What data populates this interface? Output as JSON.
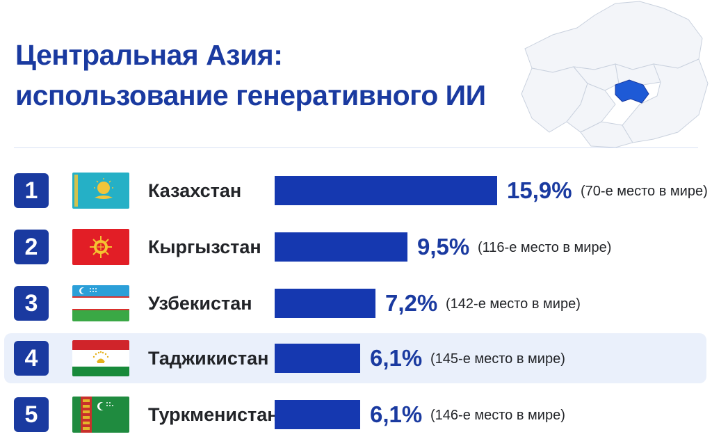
{
  "header": {
    "title_line1": "Центральная Азия:",
    "title_line2": "использование генеративного ИИ"
  },
  "colors": {
    "accent": "#1a3aa0",
    "bar": "#1538b0",
    "highlight_row": "#eaf0fb",
    "map_highlight": "#1e5ad6"
  },
  "chart_data": {
    "type": "bar",
    "orientation": "horizontal",
    "title": "Центральная Азия: использование генеративного ИИ",
    "xlim": [
      0,
      15.9
    ],
    "categories": [
      "Казахстан",
      "Кыргызстан",
      "Узбекистан",
      "Таджикистан",
      "Туркменистан"
    ],
    "values": [
      15.9,
      9.5,
      7.2,
      6.1,
      6.1
    ],
    "rows": [
      {
        "rank": "1",
        "flag": "kazakhstan-flag-icon",
        "country": "Казахстан",
        "value": 15.9,
        "value_label": "15,9%",
        "note": "(70-е место в мире)"
      },
      {
        "rank": "2",
        "flag": "kyrgyzstan-flag-icon",
        "country": "Кыргызстан",
        "value": 9.5,
        "value_label": "9,5%",
        "note": "(116-е место в мире)"
      },
      {
        "rank": "3",
        "flag": "uzbekistan-flag-icon",
        "country": "Узбекистан",
        "value": 7.2,
        "value_label": "7,2%",
        "note": "(142-е место в мире)"
      },
      {
        "rank": "4",
        "flag": "tajikistan-flag-icon",
        "country": "Таджикистан",
        "value": 6.1,
        "value_label": "6,1%",
        "note": "(145-е место в мире)",
        "highlighted": true
      },
      {
        "rank": "5",
        "flag": "turkmenistan-flag-icon",
        "country": "Туркменистан",
        "value": 6.1,
        "value_label": "6,1%",
        "note": "(146-е место в мире)"
      }
    ]
  },
  "map": {
    "icon": "central-asia-map-icon",
    "highlighted_region": "Таджикистан"
  }
}
